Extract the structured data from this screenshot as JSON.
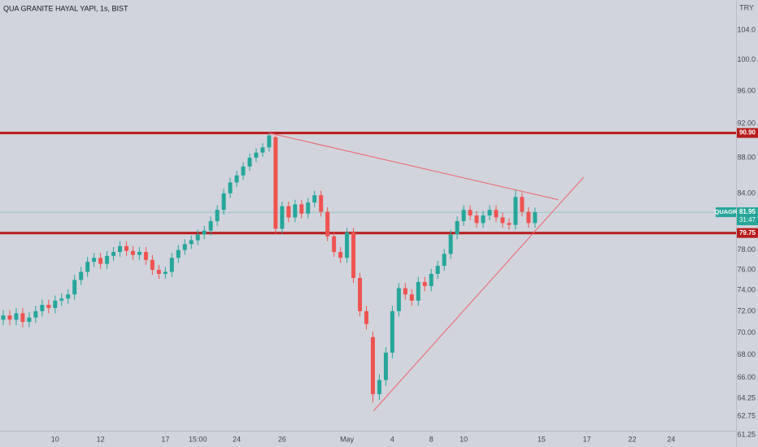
{
  "chart_data": {
    "type": "candlestick",
    "title": "QUA GRANITE HAYAL YAPI, 1s, BIST",
    "currency": "TRY",
    "log_scale": true,
    "grid": false,
    "up_color": "#26a69a",
    "down_color": "#ef5350",
    "level_color": "#b71c1c",
    "trend_color": "#f06070",
    "xlim": [
      -0.5,
      113
    ],
    "xticks": [
      {
        "value": 8,
        "label": "10"
      },
      {
        "value": 15,
        "label": "12"
      },
      {
        "value": 25,
        "label": "17"
      },
      {
        "value": 30,
        "label": "15:00"
      },
      {
        "value": 36,
        "label": "24"
      },
      {
        "value": 43,
        "label": "26"
      },
      {
        "value": 53,
        "label": "May"
      },
      {
        "value": 60,
        "label": "4"
      },
      {
        "value": 66,
        "label": "8"
      },
      {
        "value": 71,
        "label": "10"
      },
      {
        "value": 83,
        "label": "15"
      },
      {
        "value": 90,
        "label": "17"
      },
      {
        "value": 97,
        "label": "22"
      },
      {
        "value": 103,
        "label": "24"
      }
    ],
    "ylim": [
      60.28,
      108.17
    ],
    "yticks": [
      {
        "value": 104,
        "label": "104.0"
      },
      {
        "value": 100,
        "label": "100.0"
      },
      {
        "value": 96,
        "label": "96.00"
      },
      {
        "value": 92,
        "label": "92.00"
      },
      {
        "value": 88,
        "label": "88.00"
      },
      {
        "value": 84,
        "label": "84.00"
      },
      {
        "value": 78,
        "label": "78.00"
      },
      {
        "value": 76,
        "label": "76.00"
      },
      {
        "value": 74,
        "label": "74.00"
      },
      {
        "value": 72,
        "label": "72.00"
      },
      {
        "value": 70,
        "label": "70.00"
      },
      {
        "value": 68,
        "label": "68.00"
      },
      {
        "value": 66,
        "label": "66.00"
      },
      {
        "value": 64.25,
        "label": "64.25"
      },
      {
        "value": 62.75,
        "label": "62.75"
      },
      {
        "value": 61.25,
        "label": "61.25"
      }
    ],
    "open": [
      71.2,
      71.6,
      71.2,
      71.8,
      71.0,
      71.4,
      72.0,
      72.6,
      72.3,
      73.0,
      73.2,
      73.6,
      75.0,
      75.8,
      76.8,
      77.2,
      76.6,
      77.4,
      77.8,
      78.4,
      77.9,
      77.5,
      77.8,
      77.0,
      76.0,
      75.6,
      75.8,
      77.2,
      78.0,
      78.6,
      79.0,
      79.6,
      80.0,
      81.0,
      82.2,
      84.0,
      85.2,
      86.0,
      87.0,
      88.0,
      88.6,
      89.2,
      90.4,
      80.2,
      82.6,
      81.4,
      82.8,
      81.8,
      83.0,
      83.8,
      82.0,
      79.4,
      77.8,
      77.2,
      79.8,
      75.2,
      72.0,
      69.6,
      64.6,
      65.8,
      68.2,
      72.0,
      74.2,
      73.6,
      73.0,
      74.8,
      74.4,
      75.6,
      76.4,
      77.6,
      79.6,
      81.0,
      82.2,
      81.6,
      80.8,
      81.6,
      82.2,
      81.4,
      80.8,
      80.6,
      83.6,
      82.0,
      80.8
    ],
    "high": [
      72.1,
      72.1,
      72.3,
      72.3,
      71.9,
      72.5,
      73.1,
      73.1,
      73.5,
      73.7,
      74.1,
      75.5,
      76.3,
      77.3,
      77.7,
      77.7,
      77.9,
      78.3,
      78.9,
      78.9,
      78.4,
      78.3,
      78.3,
      77.5,
      76.5,
      76.3,
      77.7,
      78.5,
      79.1,
      79.5,
      80.1,
      80.5,
      81.5,
      82.7,
      84.5,
      85.7,
      86.5,
      87.5,
      88.5,
      89.1,
      89.7,
      90.9,
      90.6,
      83.1,
      83.1,
      83.3,
      83.3,
      83.5,
      84.3,
      84.3,
      82.5,
      79.9,
      78.3,
      80.3,
      80.3,
      75.7,
      72.5,
      70.1,
      66.3,
      68.7,
      72.5,
      74.7,
      74.7,
      74.1,
      75.3,
      75.3,
      76.1,
      76.9,
      78.1,
      80.1,
      81.5,
      82.7,
      82.7,
      82.1,
      82.1,
      82.7,
      82.7,
      81.9,
      81.3,
      84.4,
      84.1,
      82.5,
      82.45
    ],
    "low": [
      70.7,
      70.7,
      70.7,
      70.5,
      70.5,
      70.9,
      71.5,
      71.8,
      71.8,
      72.5,
      72.7,
      73.1,
      74.5,
      75.3,
      76.3,
      76.1,
      76.1,
      76.9,
      77.3,
      77.4,
      77.0,
      77.0,
      76.5,
      75.5,
      75.1,
      75.1,
      75.3,
      76.7,
      77.5,
      78.1,
      78.5,
      79.1,
      79.5,
      80.5,
      81.7,
      83.5,
      84.7,
      85.5,
      86.5,
      87.5,
      88.1,
      88.7,
      79.7,
      79.7,
      80.9,
      80.9,
      81.3,
      81.3,
      82.5,
      81.5,
      78.9,
      77.3,
      76.7,
      76.7,
      74.7,
      71.5,
      70.3,
      63.9,
      64.1,
      65.3,
      67.7,
      71.5,
      73.1,
      72.5,
      72.5,
      73.9,
      73.9,
      75.1,
      75.9,
      77.1,
      79.1,
      80.5,
      81.1,
      80.3,
      80.3,
      81.1,
      80.9,
      80.3,
      80.1,
      80.1,
      81.5,
      80.3,
      80.3
    ],
    "close": [
      71.6,
      71.2,
      71.8,
      71.0,
      71.4,
      72.0,
      72.6,
      72.3,
      73.0,
      73.2,
      73.6,
      75.0,
      75.8,
      76.8,
      77.2,
      76.6,
      77.4,
      77.8,
      78.4,
      77.9,
      77.5,
      77.8,
      77.0,
      76.0,
      75.6,
      75.8,
      77.2,
      78.0,
      78.6,
      79.0,
      79.6,
      80.0,
      81.0,
      82.2,
      84.0,
      85.2,
      86.0,
      87.0,
      88.0,
      88.6,
      89.2,
      90.6,
      80.2,
      82.6,
      81.4,
      82.8,
      81.8,
      83.0,
      83.8,
      82.0,
      79.4,
      77.8,
      77.2,
      79.8,
      75.2,
      72.0,
      70.8,
      64.6,
      65.8,
      68.2,
      72.0,
      74.2,
      73.6,
      73.0,
      74.8,
      74.4,
      75.6,
      76.4,
      77.6,
      79.6,
      81.0,
      82.2,
      81.6,
      80.8,
      81.6,
      82.2,
      81.4,
      80.8,
      80.6,
      83.6,
      82.0,
      80.8,
      81.95
    ],
    "levels": [
      {
        "value": 90.9,
        "label": "90.90"
      },
      {
        "value": 79.75,
        "label": "79.75"
      }
    ],
    "last_price": {
      "value": 81.95,
      "label": "81.95",
      "symbol": "QUAGR",
      "countdown": "31:47"
    },
    "trendlines": [
      {
        "x": [
          41,
          85.6
        ],
        "y": [
          90.9,
          83.3
        ]
      },
      {
        "x": [
          57.1,
          89.5
        ],
        "y": [
          63.2,
          85.8
        ]
      }
    ]
  }
}
